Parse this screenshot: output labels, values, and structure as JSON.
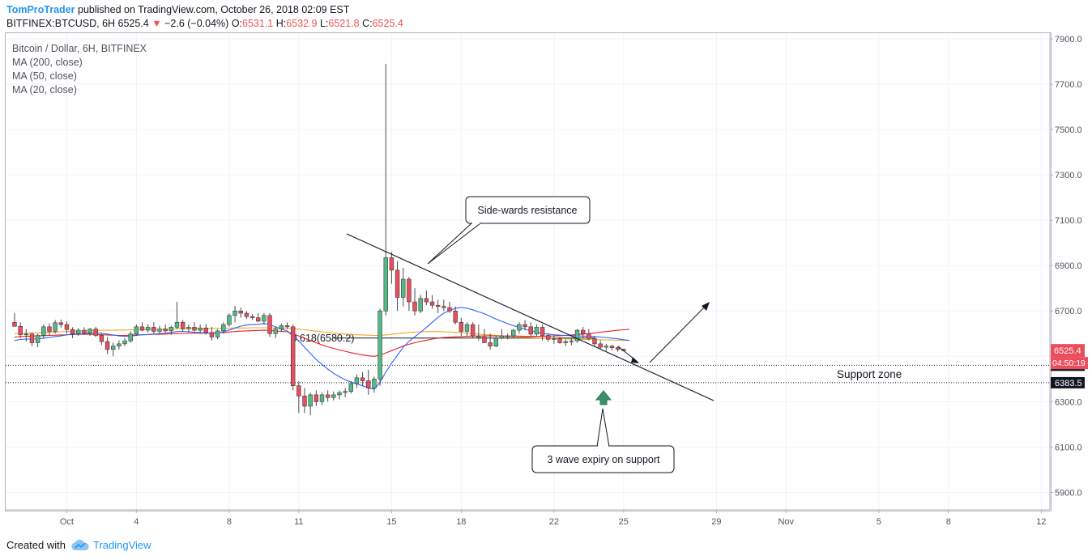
{
  "header": {
    "author": "TomProTrader",
    "published": "published on TradingView.com, October 26, 2018 02:09 EST"
  },
  "ohlc": {
    "symbol": "BITFINEX:BTCUSD, 6H",
    "last": "6525.4",
    "change": "−2.6 (−0.04%)",
    "o_label": "O:",
    "o": "6531.1",
    "h_label": "H:",
    "h": "6532.9",
    "l_label": "L:",
    "l": "6521.8",
    "c_label": "C:",
    "c": "6525.4"
  },
  "legend": {
    "title": "Bitcoin / Dollar, 6H, BITFINEX",
    "ma200": "MA (200, close)",
    "ma50": "MA (50, close)",
    "ma20": "MA (20, close)"
  },
  "footer": {
    "created_with": "Created with",
    "brand": "TradingView"
  },
  "colors": {
    "up": "#53b987",
    "down": "#eb4d5c",
    "ma20": "#2962ff",
    "ma50": "#ef1f1f",
    "ma200": "#f5a623",
    "accent": "#2196f3"
  },
  "chart_data": {
    "type": "candlestick",
    "title": "Bitcoin / Dollar, 6H, BITFINEX",
    "ylim": [
      5830,
      7930
    ],
    "yticks": [
      5900,
      6100,
      6300,
      6500,
      6700,
      6900,
      7100,
      7300,
      7500,
      7700,
      7900
    ],
    "ytick_labels": [
      "5900.0",
      "6100.0",
      "6300.0",
      "6500.0",
      "6700.0",
      "6900.0",
      "7100.0",
      "7300.0",
      "7500.0",
      "7700.0",
      "7900.0"
    ],
    "xticks": [
      {
        "label": "Oct",
        "bar": 9
      },
      {
        "label": "4",
        "bar": 21
      },
      {
        "label": "8",
        "bar": 37
      },
      {
        "label": "11",
        "bar": 49
      },
      {
        "label": "15",
        "bar": 65
      },
      {
        "label": "18",
        "bar": 77
      },
      {
        "label": "22",
        "bar": 93
      },
      {
        "label": "25",
        "bar": 105
      },
      {
        "label": "29",
        "bar": 121
      },
      {
        "label": "Nov",
        "bar": 133
      },
      {
        "label": "5",
        "bar": 149
      },
      {
        "label": "8",
        "bar": 161
      },
      {
        "label": "12",
        "bar": 177
      }
    ],
    "candles": [
      [
        6650,
        6692,
        6640,
        6632
      ],
      [
        6632,
        6650,
        6580,
        6595
      ],
      [
        6595,
        6620,
        6565,
        6598
      ],
      [
        6598,
        6605,
        6545,
        6560
      ],
      [
        6560,
        6600,
        6540,
        6592
      ],
      [
        6592,
        6640,
        6580,
        6630
      ],
      [
        6630,
        6645,
        6590,
        6610
      ],
      [
        6610,
        6660,
        6600,
        6648
      ],
      [
        6648,
        6662,
        6625,
        6640
      ],
      [
        6640,
        6655,
        6600,
        6618
      ],
      [
        6618,
        6628,
        6580,
        6600
      ],
      [
        6600,
        6625,
        6590,
        6615
      ],
      [
        6615,
        6628,
        6595,
        6603
      ],
      [
        6603,
        6625,
        6590,
        6620
      ],
      [
        6620,
        6630,
        6585,
        6592
      ],
      [
        6592,
        6600,
        6550,
        6565
      ],
      [
        6565,
        6585,
        6510,
        6530
      ],
      [
        6530,
        6560,
        6500,
        6545
      ],
      [
        6545,
        6570,
        6530,
        6555
      ],
      [
        6555,
        6580,
        6545,
        6568
      ],
      [
        6568,
        6610,
        6560,
        6598
      ],
      [
        6598,
        6640,
        6590,
        6630
      ],
      [
        6630,
        6650,
        6610,
        6615
      ],
      [
        6615,
        6640,
        6605,
        6628
      ],
      [
        6628,
        6650,
        6600,
        6610
      ],
      [
        6610,
        6635,
        6600,
        6620
      ],
      [
        6620,
        6640,
        6605,
        6612
      ],
      [
        6612,
        6635,
        6595,
        6628
      ],
      [
        6628,
        6740,
        6620,
        6650
      ],
      [
        6650,
        6660,
        6610,
        6622
      ],
      [
        6622,
        6640,
        6605,
        6628
      ],
      [
        6628,
        6650,
        6610,
        6615
      ],
      [
        6615,
        6640,
        6600,
        6625
      ],
      [
        6625,
        6642,
        6595,
        6605
      ],
      [
        6605,
        6630,
        6570,
        6585
      ],
      [
        6585,
        6620,
        6575,
        6612
      ],
      [
        6612,
        6650,
        6600,
        6640
      ],
      [
        6640,
        6690,
        6630,
        6680
      ],
      [
        6680,
        6722,
        6650,
        6700
      ],
      [
        6700,
        6715,
        6670,
        6690
      ],
      [
        6690,
        6700,
        6665,
        6675
      ],
      [
        6675,
        6685,
        6660,
        6670
      ],
      [
        6670,
        6690,
        6650,
        6655
      ],
      [
        6655,
        6690,
        6640,
        6680
      ],
      [
        6680,
        6690,
        6585,
        6600
      ],
      [
        6600,
        6630,
        6580,
        6620
      ],
      [
        6620,
        6645,
        6610,
        6635
      ],
      [
        6635,
        6650,
        6620,
        6630
      ],
      [
        6630,
        6640,
        6350,
        6370
      ],
      [
        6370,
        6390,
        6250,
        6325
      ],
      [
        6325,
        6360,
        6250,
        6280
      ],
      [
        6280,
        6340,
        6240,
        6330
      ],
      [
        6330,
        6350,
        6280,
        6300
      ],
      [
        6300,
        6340,
        6285,
        6330
      ],
      [
        6330,
        6350,
        6300,
        6318
      ],
      [
        6318,
        6345,
        6305,
        6330
      ],
      [
        6330,
        6350,
        6310,
        6340
      ],
      [
        6340,
        6360,
        6320,
        6345
      ],
      [
        6345,
        6390,
        6335,
        6380
      ],
      [
        6380,
        6420,
        6360,
        6405
      ],
      [
        6405,
        6430,
        6370,
        6392
      ],
      [
        6392,
        6440,
        6330,
        6360
      ],
      [
        6360,
        6410,
        6340,
        6400
      ],
      [
        6400,
        6710,
        6370,
        6700
      ],
      [
        6700,
        7790,
        6680,
        6935
      ],
      [
        6935,
        6960,
        6820,
        6880
      ],
      [
        6880,
        6920,
        6700,
        6760
      ],
      [
        6760,
        6890,
        6720,
        6840
      ],
      [
        6840,
        6850,
        6700,
        6740
      ],
      [
        6740,
        6800,
        6680,
        6700
      ],
      [
        6700,
        6770,
        6690,
        6755
      ],
      [
        6755,
        6790,
        6725,
        6740
      ],
      [
        6740,
        6770,
        6710,
        6725
      ],
      [
        6725,
        6750,
        6690,
        6720
      ],
      [
        6720,
        6750,
        6700,
        6715
      ],
      [
        6715,
        6740,
        6690,
        6700
      ],
      [
        6700,
        6720,
        6640,
        6650
      ],
      [
        6650,
        6670,
        6590,
        6610
      ],
      [
        6610,
        6650,
        6590,
        6640
      ],
      [
        6640,
        6650,
        6580,
        6590
      ],
      [
        6590,
        6640,
        6570,
        6585
      ],
      [
        6585,
        6620,
        6560,
        6560
      ],
      [
        6560,
        6600,
        6530,
        6545
      ],
      [
        6545,
        6590,
        6540,
        6580
      ],
      [
        6580,
        6620,
        6575,
        6590
      ],
      [
        6590,
        6600,
        6575,
        6590
      ],
      [
        6590,
        6620,
        6580,
        6615
      ],
      [
        6615,
        6650,
        6600,
        6640
      ],
      [
        6640,
        6660,
        6615,
        6630
      ],
      [
        6630,
        6650,
        6590,
        6598
      ],
      [
        6598,
        6640,
        6590,
        6628
      ],
      [
        6628,
        6640,
        6570,
        6592
      ],
      [
        6592,
        6600,
        6565,
        6575
      ],
      [
        6575,
        6590,
        6555,
        6578
      ],
      [
        6578,
        6585,
        6555,
        6560
      ],
      [
        6560,
        6575,
        6545,
        6565
      ],
      [
        6565,
        6580,
        6548,
        6568
      ],
      [
        6568,
        6620,
        6560,
        6615
      ],
      [
        6615,
        6630,
        6580,
        6600
      ],
      [
        6600,
        6620,
        6570,
        6578
      ],
      [
        6578,
        6590,
        6545,
        6555
      ],
      [
        6555,
        6570,
        6530,
        6540
      ],
      [
        6540,
        6555,
        6525,
        6545
      ],
      [
        6545,
        6550,
        6525,
        6538
      ],
      [
        6538,
        6545,
        6520,
        6530
      ],
      [
        6531,
        6533,
        6522,
        6525
      ]
    ],
    "ma20": [
      6570,
      6574,
      6576,
      6576,
      6577,
      6580,
      6583,
      6587,
      6590,
      6595,
      6598,
      6598,
      6600,
      6602,
      6603,
      6602,
      6598,
      6594,
      6590,
      6588,
      6589,
      6592,
      6595,
      6596,
      6598,
      6600,
      6602,
      6605,
      6609,
      6610,
      6608,
      6606,
      6604,
      6603,
      6601,
      6603,
      6608,
      6616,
      6625,
      6633,
      6638,
      6640,
      6641,
      6645,
      6640,
      6630,
      6620,
      6612,
      6590,
      6568,
      6540,
      6512,
      6486,
      6464,
      6444,
      6425,
      6410,
      6396,
      6386,
      6378,
      6370,
      6360,
      6355,
      6385,
      6430,
      6470,
      6505,
      6540,
      6566,
      6586,
      6606,
      6627,
      6650,
      6672,
      6690,
      6702,
      6712,
      6715,
      6712,
      6705,
      6696,
      6688,
      6676,
      6664,
      6654,
      6644,
      6635,
      6627,
      6619,
      6612,
      6607,
      6602,
      6598,
      6595,
      6593,
      6592,
      6591,
      6590,
      6589,
      6588,
      6587,
      6585,
      6583,
      6580,
      6577,
      6573,
      6570
    ],
    "ma50": [
      6585,
      6587,
      6588,
      6589,
      6590,
      6591,
      6592,
      6593,
      6594,
      6595,
      6596,
      6597,
      6597,
      6597,
      6596,
      6595,
      6594,
      6593,
      6592,
      6592,
      6593,
      6594,
      6595,
      6596,
      6597,
      6597,
      6598,
      6599,
      6600,
      6601,
      6601,
      6602,
      6602,
      6602,
      6603,
      6604,
      6605,
      6607,
      6609,
      6611,
      6612,
      6613,
      6614,
      6615,
      6614,
      6612,
      6610,
      6608,
      6600,
      6590,
      6580,
      6570,
      6560,
      6550,
      6542,
      6535,
      6528,
      6522,
      6516,
      6511,
      6506,
      6502,
      6500,
      6505,
      6515,
      6525,
      6535,
      6545,
      6553,
      6560,
      6566,
      6571,
      6576,
      6580,
      6583,
      6585,
      6586,
      6587,
      6588,
      6589,
      6589,
      6590,
      6590,
      6590,
      6589,
      6589,
      6589,
      6589,
      6588,
      6588,
      6588,
      6588,
      6589,
      6590,
      6591,
      6592,
      6594,
      6596,
      6598,
      6600,
      6603,
      6606,
      6609,
      6612,
      6615,
      6617,
      6619
    ],
    "ma200": [
      6600,
      6601,
      6602,
      6603,
      6604,
      6605,
      6606,
      6607,
      6608,
      6609,
      6610,
      6611,
      6612,
      6613,
      6614,
      6615,
      6615,
      6615,
      6616,
      6616,
      6617,
      6617,
      6618,
      6618,
      6619,
      6619,
      6620,
      6620,
      6621,
      6621,
      6622,
      6622,
      6622,
      6623,
      6623,
      6624,
      6624,
      6624,
      6625,
      6625,
      6625,
      6626,
      6626,
      6626,
      6626,
      6625,
      6625,
      6624,
      6622,
      6620,
      6617,
      6614,
      6611,
      6608,
      6605,
      6602,
      6600,
      6598,
      6596,
      6595,
      6594,
      6593,
      6592,
      6592,
      6594,
      6597,
      6600,
      6603,
      6605,
      6607,
      6608,
      6609,
      6609,
      6609,
      6608,
      6607,
      6606,
      6604,
      6602,
      6600,
      6598,
      6596,
      6594,
      6592,
      6590,
      6588,
      6587,
      6585,
      6584,
      6583,
      6582,
      6581,
      6580,
      6579,
      6578,
      6577,
      6576,
      6575,
      6574,
      6574,
      6573,
      6573,
      6572,
      6572,
      6571,
      6571,
      6570
    ],
    "horizontal_levels": [
      {
        "label": "0.618(6580.2)",
        "value": 6580.2,
        "style": "solid"
      },
      {
        "label": "6460.4",
        "value": 6460.4,
        "style": "dotted"
      },
      {
        "label": "6383.5",
        "value": 6383.5,
        "style": "dotted"
      }
    ],
    "price_label": "6525.4",
    "countdown_label": "04:50:19",
    "trendline": {
      "from": {
        "bar": 59,
        "price": 6875
      },
      "to": {
        "bar": 121,
        "price": 6310
      }
    },
    "annotations": {
      "resistance": "Side-wards resistance",
      "support_zone": "Support zone",
      "expiry": "3 wave expiry on support"
    }
  }
}
